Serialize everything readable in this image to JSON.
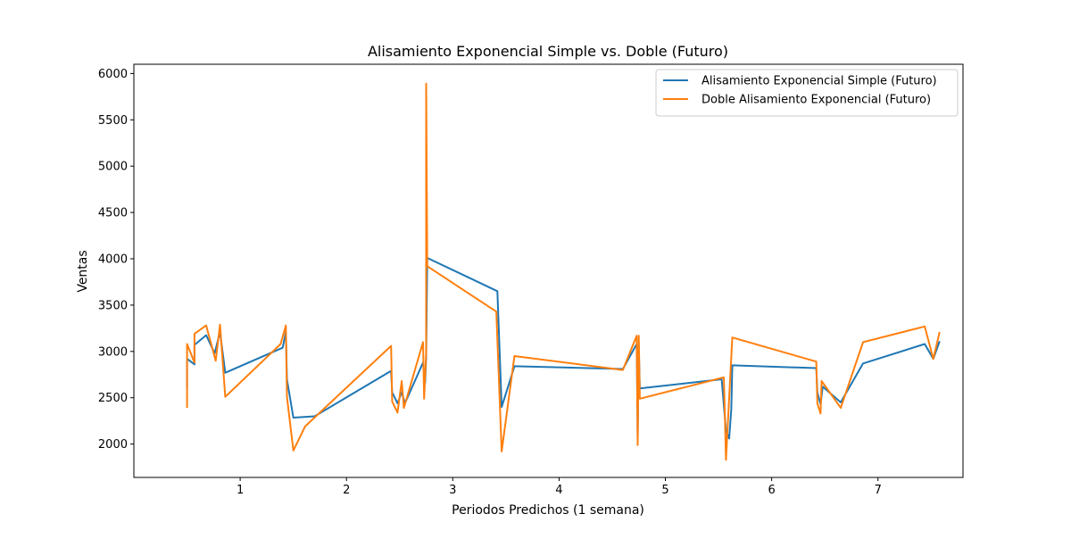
{
  "chart_data": {
    "type": "line",
    "title": "Alisamiento Exponencial Simple vs. Doble (Futuro)",
    "xlabel": "Periodos Predichos (1 semana)",
    "ylabel": "Ventas",
    "xlim": [
      0.0,
      7.8
    ],
    "ylim": [
      1640,
      6100
    ],
    "x_ticks": [
      1,
      2,
      3,
      4,
      5,
      6,
      7
    ],
    "y_ticks": [
      2000,
      2500,
      3000,
      3500,
      4000,
      4500,
      5000,
      5500,
      6000
    ],
    "grid": false,
    "legend_position": "top-right",
    "series": [
      {
        "name": "Alisamiento Exponencial Simple (Futuro)",
        "color": "#1f77b4",
        "points": [
          [
            0.5,
            2600
          ],
          [
            0.5,
            2920
          ],
          [
            0.57,
            2860
          ],
          [
            0.57,
            3070
          ],
          [
            0.68,
            3175
          ],
          [
            0.76,
            2980
          ],
          [
            0.81,
            3210
          ],
          [
            0.86,
            2770
          ],
          [
            1.4,
            3040
          ],
          [
            1.43,
            3210
          ],
          [
            1.44,
            2700
          ],
          [
            1.5,
            2285
          ],
          [
            1.7,
            2300
          ],
          [
            2.42,
            2790
          ],
          [
            2.43,
            2560
          ],
          [
            2.48,
            2440
          ],
          [
            2.52,
            2560
          ],
          [
            2.55,
            2440
          ],
          [
            2.72,
            2880
          ],
          [
            2.74,
            2660
          ],
          [
            2.75,
            2940
          ],
          [
            2.76,
            4010
          ],
          [
            3.42,
            3650
          ],
          [
            3.46,
            2400
          ],
          [
            3.58,
            2840
          ],
          [
            4.6,
            2810
          ],
          [
            4.73,
            3080
          ],
          [
            4.74,
            2060
          ],
          [
            4.75,
            3050
          ],
          [
            4.76,
            2600
          ],
          [
            5.53,
            2700
          ],
          [
            5.57,
            2150
          ],
          [
            5.6,
            2060
          ],
          [
            5.62,
            2380
          ],
          [
            5.63,
            2850
          ],
          [
            6.42,
            2820
          ],
          [
            6.43,
            2560
          ],
          [
            6.46,
            2430
          ],
          [
            6.48,
            2620
          ],
          [
            6.65,
            2450
          ],
          [
            6.86,
            2870
          ],
          [
            7.44,
            3080
          ],
          [
            7.52,
            2920
          ],
          [
            7.58,
            3110
          ]
        ]
      },
      {
        "name": "Doble Alisamiento Exponencial (Futuro)",
        "color": "#ff7f0e",
        "points": [
          [
            0.5,
            2390
          ],
          [
            0.5,
            3080
          ],
          [
            0.57,
            2880
          ],
          [
            0.57,
            3190
          ],
          [
            0.68,
            3280
          ],
          [
            0.77,
            2900
          ],
          [
            0.81,
            3290
          ],
          [
            0.86,
            2510
          ],
          [
            1.38,
            3080
          ],
          [
            1.43,
            3280
          ],
          [
            1.44,
            2510
          ],
          [
            1.5,
            1930
          ],
          [
            1.61,
            2190
          ],
          [
            2.42,
            3060
          ],
          [
            2.43,
            2460
          ],
          [
            2.48,
            2340
          ],
          [
            2.52,
            2680
          ],
          [
            2.54,
            2390
          ],
          [
            2.72,
            3100
          ],
          [
            2.73,
            2490
          ],
          [
            2.75,
            2990
          ],
          [
            2.75,
            5890
          ],
          [
            2.76,
            3920
          ],
          [
            3.41,
            3430
          ],
          [
            3.46,
            1920
          ],
          [
            3.58,
            2950
          ],
          [
            4.6,
            2800
          ],
          [
            4.73,
            3170
          ],
          [
            4.74,
            1990
          ],
          [
            4.75,
            3170
          ],
          [
            4.76,
            2490
          ],
          [
            5.55,
            2720
          ],
          [
            5.56,
            2310
          ],
          [
            5.57,
            1830
          ],
          [
            5.63,
            3150
          ],
          [
            6.42,
            2890
          ],
          [
            6.43,
            2440
          ],
          [
            6.46,
            2330
          ],
          [
            6.47,
            2680
          ],
          [
            6.65,
            2390
          ],
          [
            6.86,
            3100
          ],
          [
            7.44,
            3270
          ],
          [
            7.52,
            2920
          ],
          [
            7.58,
            3210
          ]
        ]
      }
    ]
  }
}
